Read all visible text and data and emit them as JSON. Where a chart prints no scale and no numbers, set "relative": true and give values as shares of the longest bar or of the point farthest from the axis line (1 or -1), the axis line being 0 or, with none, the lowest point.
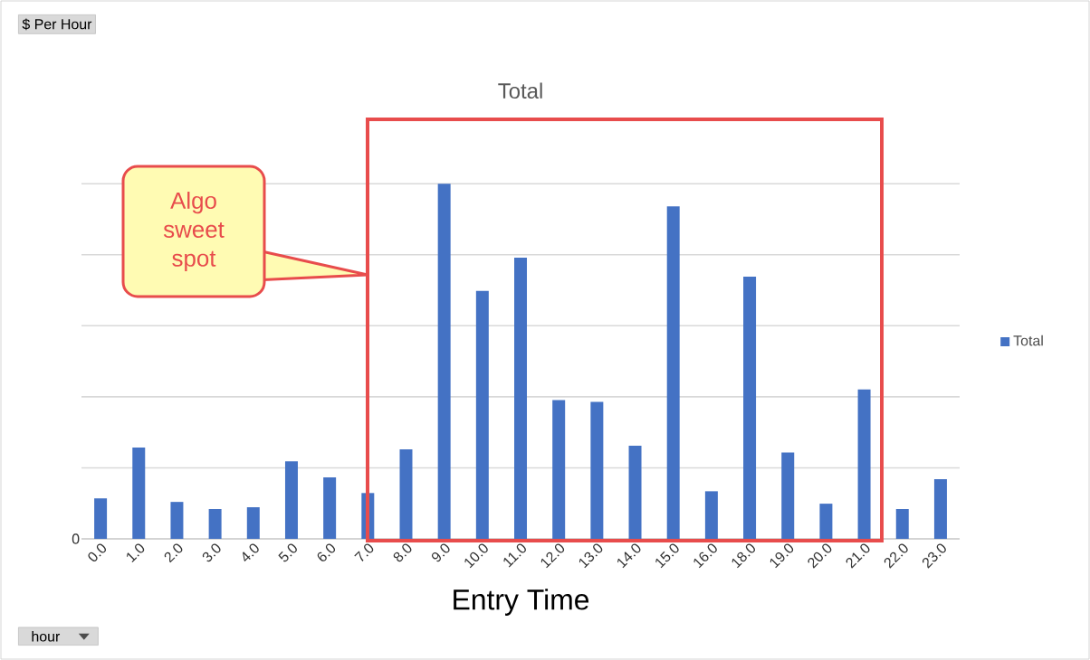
{
  "chart_data": {
    "type": "bar",
    "title": "Total",
    "xlabel": "Entry Time",
    "relative": true,
    "categories": [
      "0.0",
      "1.0",
      "2.0",
      "3.0",
      "4.0",
      "5.0",
      "6.0",
      "7.0",
      "8.0",
      "9.0",
      "10.0",
      "11.0",
      "12.0",
      "13.0",
      "14.0",
      "15.0",
      "16.0",
      "18.0",
      "19.0",
      "20.0",
      "21.0",
      "22.0",
      "23.0"
    ],
    "series": [
      {
        "name": "Total",
        "color": "#4472c4",
        "values": [
          0.114,
          0.257,
          0.104,
          0.084,
          0.089,
          0.218,
          0.173,
          0.129,
          0.252,
          1,
          0.698,
          0.792,
          0.391,
          0.386,
          0.262,
          0.936,
          0.134,
          0.738,
          0.243,
          0.099,
          0.421,
          0.084,
          0.168
        ]
      }
    ],
    "annotations": [
      "$ Per Hour",
      "hour",
      "0",
      "Algo sweet spot"
    ],
    "grid": "y",
    "legend": "right"
  }
}
